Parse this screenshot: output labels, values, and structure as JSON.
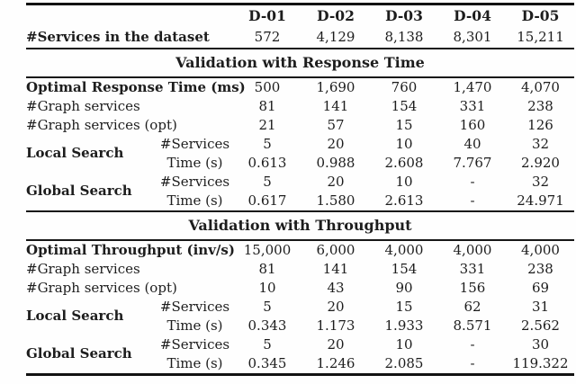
{
  "table": {
    "columns": [
      "D-01",
      "D-02",
      "D-03",
      "D-04",
      "D-05"
    ],
    "dataset_row": {
      "label": "#Services in the dataset",
      "values": [
        "572",
        "4,129",
        "8,138",
        "8,301",
        "15,211"
      ]
    },
    "sections": [
      {
        "title": "Validation with Response Time",
        "rows": [
          {
            "label": "Optimal Response Time (ms)",
            "bold": true,
            "values": [
              "500",
              "1,690",
              "760",
              "1,470",
              "4,070"
            ]
          },
          {
            "label": "#Graph services",
            "bold": false,
            "values": [
              "81",
              "141",
              "154",
              "331",
              "238"
            ]
          },
          {
            "label": "#Graph services (opt)",
            "bold": false,
            "values": [
              "21",
              "57",
              "15",
              "160",
              "126"
            ]
          },
          {
            "label": "Local Search",
            "bold": true,
            "rowspan": 2,
            "sublabel": "#Services",
            "values": [
              "5",
              "20",
              "10",
              "40",
              "32"
            ]
          },
          {
            "sublabel": "Time (s)",
            "values": [
              "0.613",
              "0.988",
              "2.608",
              "7.767",
              "2.920"
            ]
          },
          {
            "label": "Global Search",
            "bold": true,
            "rowspan": 2,
            "sublabel": "#Services",
            "values": [
              "5",
              "20",
              "10",
              "-",
              "32"
            ]
          },
          {
            "sublabel": "Time (s)",
            "values": [
              "0.617",
              "1.580",
              "2.613",
              "-",
              "24.971"
            ]
          }
        ]
      },
      {
        "title": "Validation with Throughput",
        "rows": [
          {
            "label": "Optimal Throughput (inv/s)",
            "bold": true,
            "values": [
              "15,000",
              "6,000",
              "4,000",
              "4,000",
              "4,000"
            ]
          },
          {
            "label": "#Graph services",
            "bold": false,
            "values": [
              "81",
              "141",
              "154",
              "331",
              "238"
            ]
          },
          {
            "label": "#Graph services (opt)",
            "bold": false,
            "values": [
              "10",
              "43",
              "90",
              "156",
              "69"
            ]
          },
          {
            "label": "Local Search",
            "bold": true,
            "rowspan": 2,
            "sublabel": "#Services",
            "values": [
              "5",
              "20",
              "15",
              "62",
              "31"
            ]
          },
          {
            "sublabel": "Time (s)",
            "values": [
              "0.343",
              "1.173",
              "1.933",
              "8.571",
              "2.562"
            ]
          },
          {
            "label": "Global Search",
            "bold": true,
            "rowspan": 2,
            "sublabel": "#Services",
            "values": [
              "5",
              "20",
              "10",
              "-",
              "30"
            ]
          },
          {
            "sublabel": "Time (s)",
            "values": [
              "0.345",
              "1.246",
              "2.085",
              "-",
              "119.322"
            ]
          }
        ]
      }
    ]
  },
  "colors": {
    "background": "#fefefe",
    "text": "#1d1d1d",
    "rule": "#161616"
  }
}
